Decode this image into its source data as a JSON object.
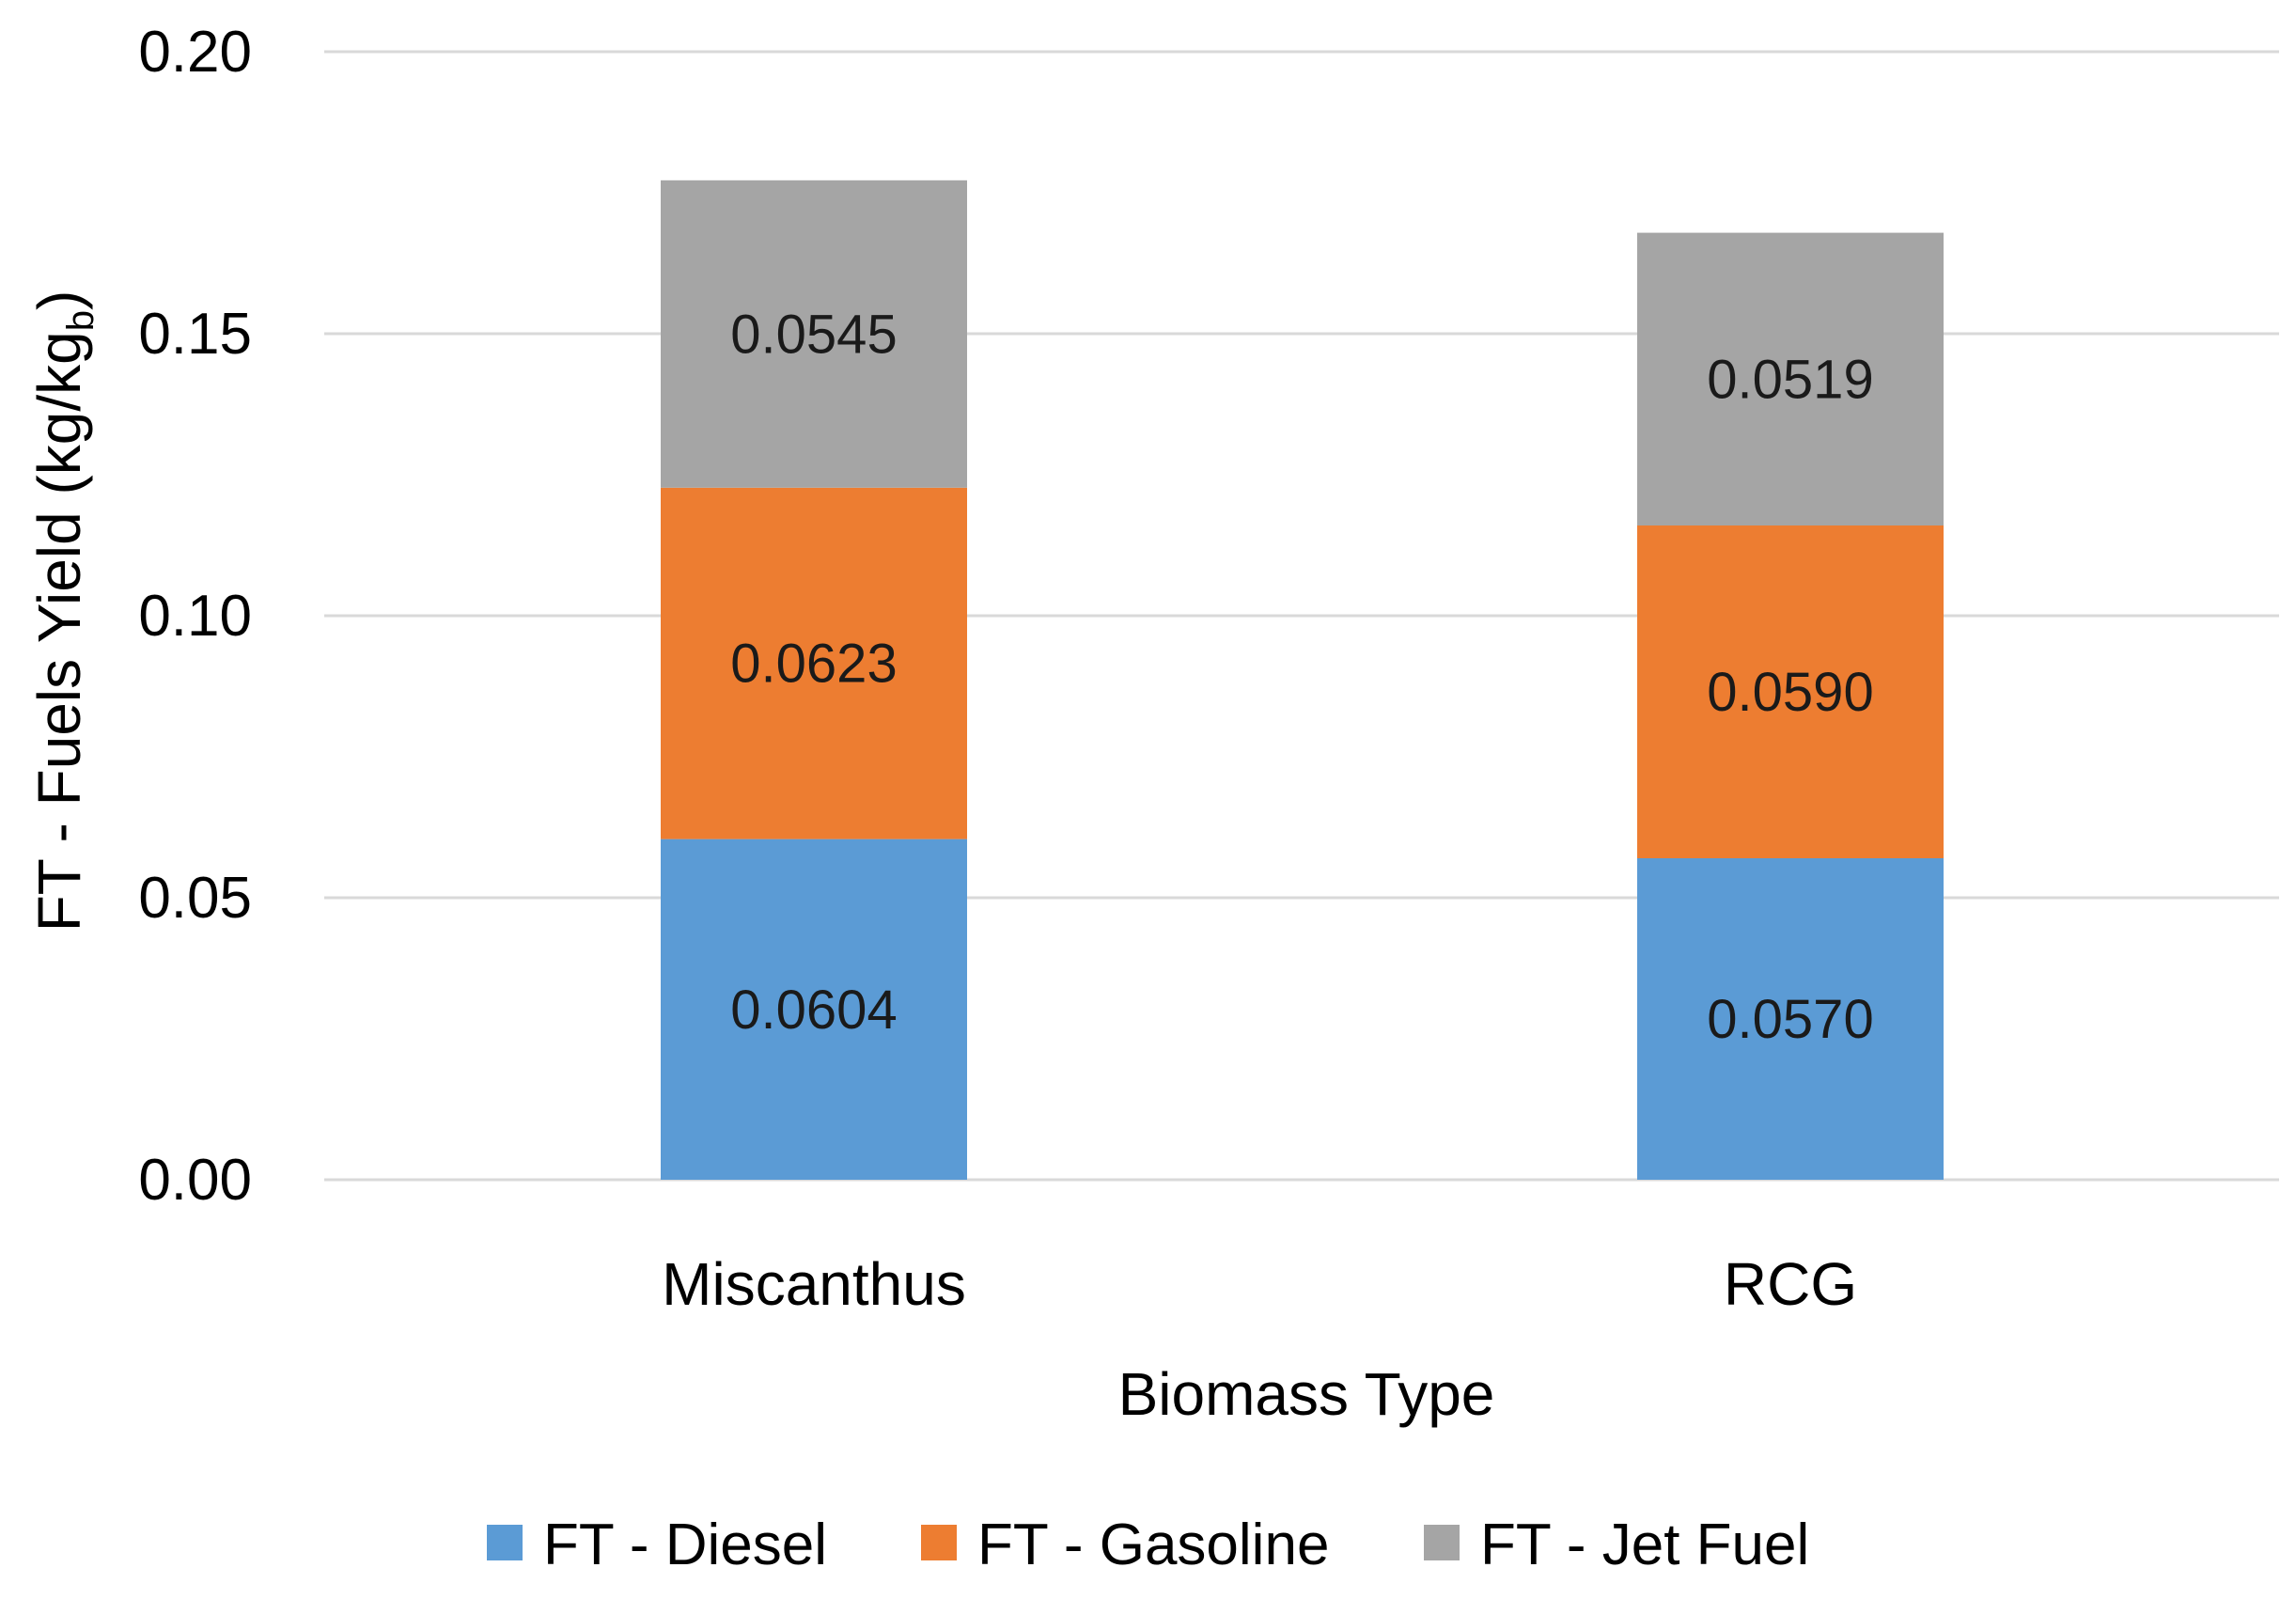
{
  "chart_data": {
    "type": "bar",
    "stacked": true,
    "title": "",
    "xlabel": "Biomass Type",
    "ylabel": {
      "main": "FT - Fuels Yield (kg/kg",
      "subscript": "b",
      "close": ")"
    },
    "categories": [
      "Miscanthus",
      "RCG"
    ],
    "ylim": [
      0,
      0.2
    ],
    "yticks": [
      0.0,
      0.05,
      0.1,
      0.15,
      0.2
    ],
    "ytick_labels": [
      "0.00",
      "0.05",
      "0.10",
      "0.15",
      "0.20"
    ],
    "grid": true,
    "legend_position": "bottom",
    "series": [
      {
        "name": "FT - Diesel",
        "color": "#5B9BD5",
        "values": [
          0.0604,
          0.057
        ],
        "labels": [
          "0.0604",
          "0.0570"
        ]
      },
      {
        "name": "FT - Gasoline",
        "color": "#ED7D31",
        "values": [
          0.0623,
          0.059
        ],
        "labels": [
          "0.0623",
          "0.0590"
        ]
      },
      {
        "name": "FT - Jet Fuel",
        "color": "#A5A5A5",
        "values": [
          0.0545,
          0.0519
        ],
        "labels": [
          "0.0545",
          "0.0519"
        ]
      }
    ]
  }
}
